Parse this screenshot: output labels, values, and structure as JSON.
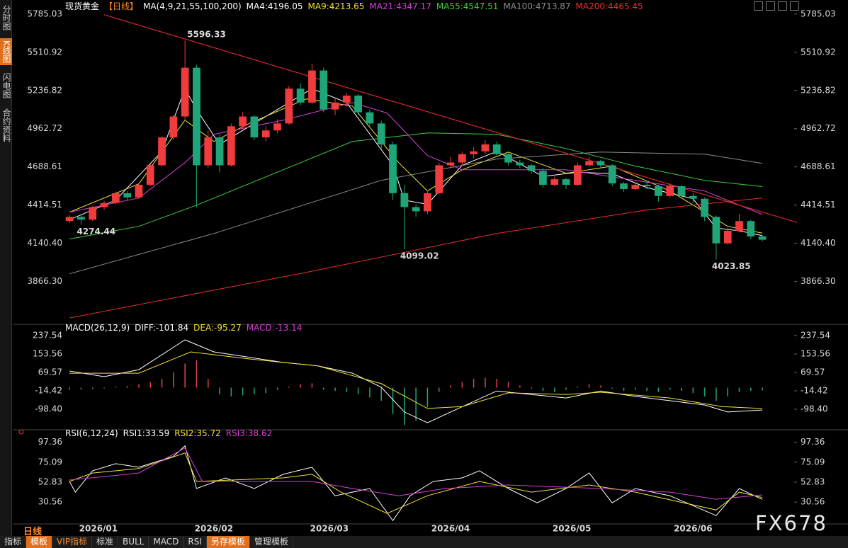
{
  "sidebar": [
    "分时图",
    "K线图",
    "闪电图",
    "合约资料"
  ],
  "footer": {
    "period": "日线",
    "tabs": [
      "指标",
      "模板",
      "VIP指标",
      "标准",
      "BULL",
      "MACD",
      "RSI",
      "另存模板",
      "管理模板"
    ]
  },
  "watermark": "FX678",
  "chart_data": [
    {
      "type": "candlestick",
      "title": "现货黄金",
      "subtitle": "【日线】",
      "indicator": "MA(4,9,21,55,100,200)",
      "xlim": [
        -0.5,
        63
      ],
      "xticks": [
        {
          "value": 2.5,
          "label": "2026/01"
        },
        {
          "value": 12.5,
          "label": "2026/02"
        },
        {
          "value": 22.5,
          "label": "2026/03"
        },
        {
          "value": 33,
          "label": "2026/04"
        },
        {
          "value": 43.5,
          "label": "2026/05"
        },
        {
          "value": 54,
          "label": "2026/06"
        }
      ],
      "ylim": [
        3580,
        5845
      ],
      "yticks": [
        5785.03,
        5510.92,
        5236.82,
        4962.72,
        4688.61,
        4414.51,
        {
          "value": 4140.4,
          "label": "4140.40"
        },
        {
          "value": 3866.3,
          "label": "3866.30"
        }
      ],
      "grid": false,
      "up_color": "#f03c3c",
      "down_color": "#1ea67a",
      "x": [
        0,
        1,
        2,
        3,
        4,
        5,
        6,
        7,
        8,
        9,
        10,
        11,
        12,
        13,
        14,
        15,
        16,
        17,
        18,
        19,
        20,
        21,
        22,
        23,
        24,
        25,
        26,
        27,
        28,
        29,
        30,
        31,
        32,
        33,
        34,
        35,
        36,
        37,
        38,
        39,
        40,
        41,
        42,
        43,
        44,
        45,
        46,
        47,
        48,
        49,
        50,
        51,
        52,
        53,
        54,
        55,
        56,
        57,
        58,
        59,
        60
      ],
      "open": [
        4300,
        4330,
        4310,
        4400,
        4430,
        4500,
        4470,
        4560,
        4700,
        4900,
        5050,
        5400,
        4700,
        4900,
        4700,
        4980,
        5050,
        4900,
        4950,
        5000,
        5250,
        5150,
        5380,
        5100,
        5150,
        5200,
        5080,
        5000,
        4850,
        4500,
        4400,
        4370,
        4500,
        4700,
        4720,
        4780,
        4800,
        4850,
        4780,
        4720,
        4700,
        4660,
        4560,
        4600,
        4560,
        4700,
        4730,
        4700,
        4570,
        4530,
        4560,
        4550,
        4480,
        4550,
        4480,
        4460,
        4330,
        4140,
        4230,
        4300,
        4190
      ],
      "high": [
        4345,
        4350,
        4410,
        4445,
        4510,
        4515,
        4575,
        4710,
        4910,
        5060,
        5596.33,
        5420,
        4950,
        4920,
        5000,
        5080,
        5060,
        4980,
        5030,
        5270,
        5290,
        5430,
        5400,
        5180,
        5220,
        5210,
        5100,
        5020,
        4870,
        4560,
        4420,
        4520,
        4720,
        4760,
        4800,
        4830,
        4880,
        4870,
        4790,
        4740,
        4710,
        4680,
        4620,
        4610,
        4720,
        4760,
        4740,
        4710,
        4580,
        4580,
        4590,
        4560,
        4570,
        4560,
        4500,
        4470,
        4340,
        4250,
        4350,
        4310,
        4200
      ],
      "low": [
        4285,
        4274.44,
        4300,
        4380,
        4420,
        4450,
        4460,
        4550,
        4690,
        4880,
        5020,
        4400,
        4680,
        4650,
        4690,
        4960,
        4880,
        4870,
        4930,
        4990,
        5130,
        5140,
        5080,
        5060,
        5120,
        5060,
        4980,
        4820,
        4450,
        4099.02,
        4330,
        4350,
        4490,
        4680,
        4700,
        4750,
        4780,
        4760,
        4700,
        4680,
        4640,
        4540,
        4550,
        4530,
        4550,
        4690,
        4680,
        4550,
        4510,
        4520,
        4530,
        4440,
        4470,
        4460,
        4430,
        4300,
        4023.85,
        4130,
        4220,
        4170,
        4155
      ],
      "close": [
        4330,
        4310,
        4400,
        4430,
        4500,
        4470,
        4560,
        4700,
        4900,
        5050,
        5400,
        4700,
        4900,
        4700,
        4980,
        5050,
        4900,
        4950,
        5000,
        5250,
        5150,
        5380,
        5100,
        5150,
        5200,
        5080,
        5000,
        4850,
        4500,
        4400,
        4370,
        4500,
        4700,
        4720,
        4780,
        4800,
        4850,
        4780,
        4720,
        4700,
        4660,
        4560,
        4600,
        4560,
        4700,
        4730,
        4700,
        4570,
        4530,
        4560,
        4550,
        4480,
        4550,
        4480,
        4460,
        4330,
        4140,
        4230,
        4300,
        4190,
        4166
      ],
      "series": [
        {
          "name": "MA4:4196.05",
          "color": "#ffffff",
          "x": [
            0,
            4,
            8,
            10,
            11,
            13,
            15,
            19,
            21,
            24,
            28,
            29,
            31,
            34,
            37,
            41,
            44,
            47,
            50,
            54,
            56,
            58,
            60
          ],
          "values": [
            4310,
            4450,
            4800,
            5250,
            5100,
            4850,
            4950,
            5150,
            5250,
            5150,
            4700,
            4450,
            4420,
            4700,
            4800,
            4620,
            4650,
            4640,
            4540,
            4460,
            4250,
            4230,
            4196.05
          ]
        },
        {
          "name": "MA9:4213.65",
          "color": "#f2e233",
          "x": [
            0,
            6,
            10,
            12.5,
            15.5,
            20.5,
            24.5,
            28.5,
            31,
            34,
            38,
            43,
            47,
            52,
            55,
            57,
            60
          ],
          "values": [
            4364,
            4567,
            5024,
            4871,
            4998,
            5176,
            5125,
            4719,
            4516,
            4668,
            4795,
            4643,
            4694,
            4516,
            4364,
            4262,
            4213.65
          ]
        },
        {
          "name": "MA21:4347.17",
          "color": "#d63fd6",
          "x": [
            0,
            6,
            10,
            12.5,
            18.5,
            24.5,
            27.5,
            31,
            34,
            37,
            43,
            49,
            55,
            60
          ],
          "values": [
            4364,
            4465,
            4719,
            4922,
            5024,
            5150,
            5075,
            4770,
            4668,
            4668,
            4668,
            4592,
            4516,
            4347.17
          ]
        },
        {
          "name": "MA55:4547.51",
          "color": "#3ccf3c",
          "x": [
            0,
            6,
            11,
            18.5,
            24.5,
            31,
            37,
            43,
            49,
            55,
            60
          ],
          "values": [
            4171,
            4262,
            4414,
            4668,
            4871,
            4932,
            4922,
            4820,
            4694,
            4592,
            4547.51
          ]
        },
        {
          "name": "MA100:4713.87",
          "color": "#8c8c8c",
          "x": [
            0,
            12.5,
            27,
            37,
            46,
            55,
            60
          ],
          "values": [
            3922,
            4211,
            4592,
            4745,
            4795,
            4780,
            4713.87
          ]
        },
        {
          "name": "MA200:4465.45",
          "color": "#e8302c",
          "x": [
            0,
            20.5,
            37,
            50,
            60
          ],
          "values": [
            3605,
            3932,
            4211,
            4380,
            4465.45
          ]
        }
      ],
      "trendline": {
        "color": "#d42a2a",
        "x": [
          3,
          63
        ],
        "values": [
          5780,
          4290
        ]
      },
      "annotations": [
        {
          "x": 10,
          "value": 5596.33,
          "color": "#ff6666"
        },
        {
          "x": 1,
          "value": 4274.44,
          "color": "#49c79a"
        },
        {
          "x": 29,
          "value": 4099.02,
          "color": "#49c79a"
        },
        {
          "x": 56,
          "value": 4023.85,
          "color": "#49c79a"
        }
      ]
    },
    {
      "type": "macd",
      "title": "MACD(26,12,9)",
      "xlim": [
        -0.5,
        63
      ],
      "ylim": [
        -192,
        276
      ],
      "yticks": [
        237.54,
        153.56,
        69.57,
        -14.42,
        {
          "value": -98.4,
          "label": "-98.40"
        }
      ],
      "series": [
        {
          "name": "DIFF:-101.84",
          "color": "#ffffff",
          "x": [
            0,
            3,
            6,
            10,
            12.5,
            18.5,
            21.5,
            24.5,
            27,
            29,
            31,
            33,
            37,
            43,
            46,
            49,
            55,
            57,
            60
          ],
          "values": [
            76,
            50,
            82,
            218,
            163,
            115,
            99,
            66,
            2,
            -111,
            -160,
            -111,
            -15,
            -47,
            -15,
            -40,
            -79,
            -111,
            -101.84
          ]
        },
        {
          "name": "DEA:-95.27",
          "color": "#f2e233",
          "x": [
            0,
            6,
            10.5,
            15.5,
            21.5,
            27,
            31,
            34,
            38,
            43,
            46,
            52,
            56.5,
            60
          ],
          "values": [
            66,
            66,
            163,
            131,
            99,
            18,
            -95,
            -86,
            -24,
            -31,
            -21,
            -47,
            -86,
            -95.27
          ]
        }
      ],
      "histogram": {
        "name": "MACD:-13.14",
        "color": "#d63fd6",
        "up_color": "#e0444b",
        "down_color": "#20a878",
        "values": [
          -10,
          -8,
          -6,
          -4,
          5,
          8,
          15,
          25,
          40,
          70,
          110,
          125,
          40,
          -30,
          -40,
          -35,
          -30,
          -25,
          -10,
          5,
          15,
          20,
          -10,
          -15,
          -20,
          -30,
          -45,
          -60,
          -120,
          -170,
          -150,
          -90,
          -20,
          10,
          25,
          40,
          45,
          40,
          25,
          10,
          -5,
          -15,
          -20,
          -10,
          5,
          15,
          10,
          -5,
          -15,
          -10,
          -15,
          -20,
          -10,
          -15,
          -25,
          -40,
          -60,
          -40,
          -20,
          -15,
          -13.14
        ]
      }
    },
    {
      "type": "line",
      "title": "RSI(6,12,24)",
      "xlim": [
        -0.5,
        63
      ],
      "ylim": [
        7,
        105
      ],
      "yticks": [
        97.36,
        75.09,
        52.83,
        30.56
      ],
      "series": [
        {
          "name": "RSI1:33.59",
          "color": "#ffffff",
          "x": [
            0,
            0.5,
            2,
            4,
            6,
            9,
            10,
            11,
            13.5,
            16,
            18.5,
            21,
            23,
            26,
            28,
            29.5,
            31.5,
            34,
            35.5,
            38,
            40.5,
            43,
            45,
            47,
            49,
            52,
            56,
            58,
            60
          ],
          "values": [
            53.6,
            41.7,
            65.6,
            73.5,
            69.5,
            81.5,
            93.4,
            45.7,
            57.6,
            45.7,
            61.6,
            69.5,
            37.7,
            45.7,
            9.9,
            37.7,
            53.6,
            57.6,
            65.6,
            45.7,
            29.8,
            45.7,
            63.2,
            29.8,
            45.7,
            37.7,
            15.5,
            45.7,
            33.59
          ]
        },
        {
          "name": "RSI2:35.72",
          "color": "#f2e233",
          "x": [
            0,
            2,
            6,
            10,
            11,
            18.5,
            21,
            23.5,
            27.5,
            31,
            35.5,
            40,
            45,
            49,
            56,
            58,
            60
          ],
          "values": [
            53.6,
            63,
            68,
            85.4,
            53.6,
            57.6,
            61.6,
            41.7,
            17.9,
            37.7,
            53.6,
            41.7,
            49.7,
            41.7,
            21.8,
            41.7,
            35.72
          ]
        },
        {
          "name": "RSI3:38.62",
          "color": "#d63fd6",
          "x": [
            0,
            6,
            10,
            11.5,
            21,
            24.5,
            28.5,
            32.5,
            38,
            46,
            52,
            56,
            60
          ],
          "values": [
            55.2,
            63,
            91,
            53.6,
            53.6,
            45.7,
            37.7,
            45.7,
            49.7,
            45.7,
            41.7,
            33.8,
            38.62
          ]
        }
      ]
    }
  ]
}
